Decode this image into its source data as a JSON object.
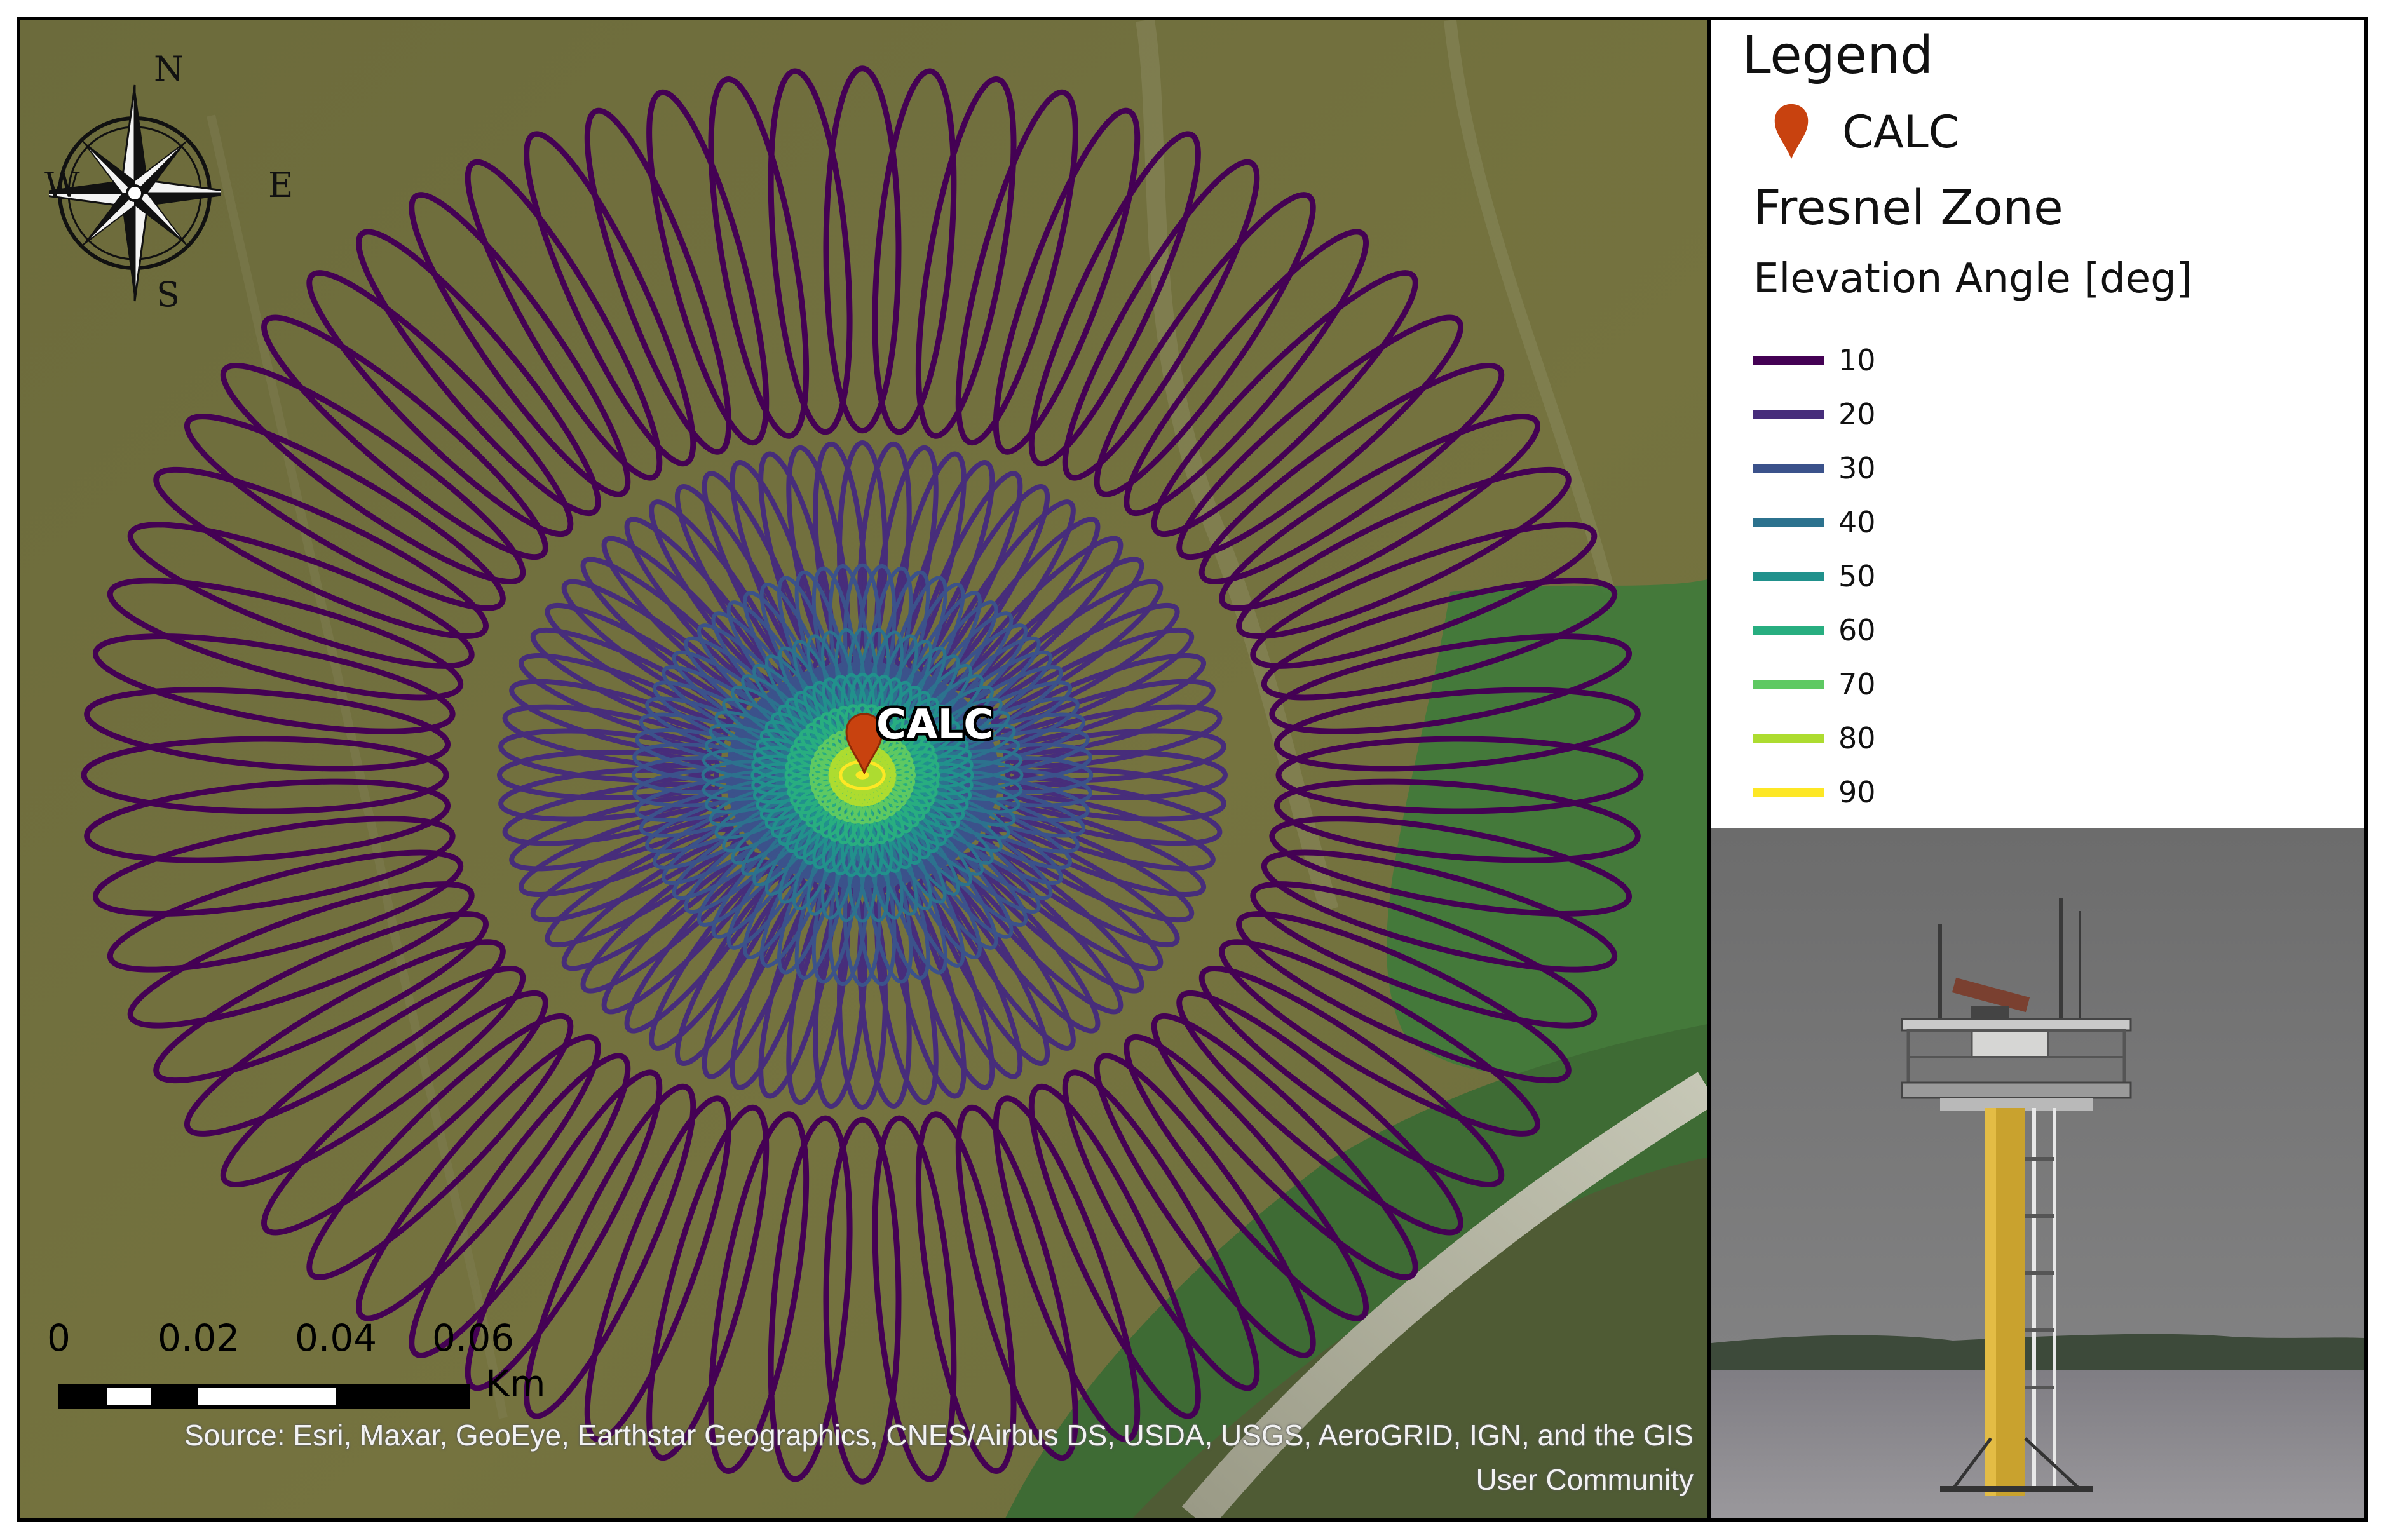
{
  "map": {
    "site_label": "CALC",
    "compass": {
      "n": "N",
      "s": "S",
      "e": "E",
      "w": "W"
    },
    "scale_bar": {
      "ticks": [
        "0",
        "0.02",
        "0.04",
        "0.06"
      ],
      "unit": "Km"
    },
    "source": {
      "line1": "Source: Esri, Maxar, GeoEye, Earthstar Geographics, CNES/Airbus DS, USDA, USGS, AeroGRID, IGN, and the GIS",
      "line2": "User Community"
    }
  },
  "legend": {
    "title": "Legend",
    "site": "CALC",
    "layer_title": "Fresnel Zone",
    "field_title": "Elevation Angle [deg]",
    "items": [
      {
        "value": "10",
        "color": "#440154"
      },
      {
        "value": "20",
        "color": "#472d7b"
      },
      {
        "value": "30",
        "color": "#3b528b"
      },
      {
        "value": "40",
        "color": "#2c728e"
      },
      {
        "value": "50",
        "color": "#21918c"
      },
      {
        "value": "60",
        "color": "#28ae80"
      },
      {
        "value": "70",
        "color": "#5ec962"
      },
      {
        "value": "80",
        "color": "#addc30"
      },
      {
        "value": "90",
        "color": "#fde725"
      }
    ]
  },
  "colors": {
    "pin": "#c8420f",
    "water": "#6f6f3e"
  }
}
